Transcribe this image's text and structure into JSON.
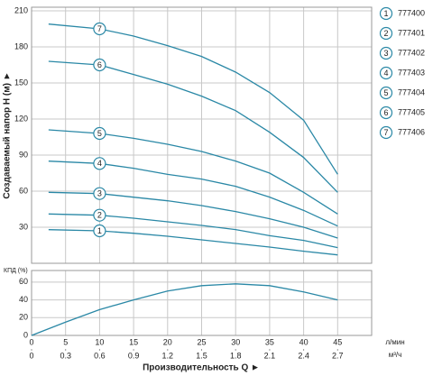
{
  "chart_data": [
    {
      "type": "line",
      "y_label": "Создаваемый напор H (м) ►",
      "ylim": [
        0,
        210
      ],
      "yticks": [
        30,
        60,
        90,
        120,
        150,
        180,
        210
      ],
      "grid": true,
      "legend": "right",
      "color": "#2a88a6",
      "x": [
        2.5,
        10,
        15,
        20,
        25,
        30,
        35,
        40,
        45
      ],
      "series": [
        {
          "name": "777400",
          "label": "1",
          "color": "#2a88a6",
          "values": [
            28,
            27,
            25,
            22.5,
            19.5,
            16.5,
            13.5,
            10,
            7
          ]
        },
        {
          "name": "777401",
          "label": "2",
          "color": "#2a88a6",
          "values": [
            41,
            40,
            37.5,
            34.5,
            31.5,
            28,
            23,
            19,
            13
          ]
        },
        {
          "name": "777402",
          "label": "3",
          "color": "#2a88a6",
          "values": [
            59,
            58,
            55,
            52,
            48,
            43,
            37,
            30,
            21
          ]
        },
        {
          "name": "777403",
          "label": "4",
          "color": "#2a88a6",
          "values": [
            85,
            83,
            79,
            74,
            70,
            64,
            55,
            44,
            31
          ]
        },
        {
          "name": "777404",
          "label": "5",
          "color": "#2a88a6",
          "values": [
            111,
            108,
            104,
            99,
            93,
            85,
            75,
            59,
            41
          ]
        },
        {
          "name": "777405",
          "label": "6",
          "color": "#2a88a6",
          "values": [
            168,
            165,
            157,
            149,
            139,
            127,
            109,
            88,
            59
          ]
        },
        {
          "name": "777406",
          "label": "7",
          "color": "#2a88a6",
          "values": [
            199,
            195,
            189,
            181,
            172,
            159,
            142,
            119,
            74
          ]
        }
      ],
      "label_at_x": 10
    },
    {
      "type": "line",
      "y_label": "КПД (%)",
      "ylim": [
        0,
        70
      ],
      "yticks": [
        0,
        20,
        40,
        60
      ],
      "xlim": [
        0,
        50
      ],
      "xticks": [
        0,
        5,
        10,
        15,
        20,
        25,
        30,
        35,
        40,
        45
      ],
      "x_unit": "л/мин",
      "x2lim": [
        0,
        3
      ],
      "x2ticks": [
        0,
        0.3,
        0.6,
        0.9,
        1.2,
        1.5,
        1.8,
        2.1,
        2.4,
        2.7
      ],
      "x2_unit": "м³/ч",
      "x_label": "Производительность Q ►",
      "grid": true,
      "x": [
        0,
        5,
        10,
        15,
        20,
        25,
        30,
        35,
        40,
        45
      ],
      "series": [
        {
          "color": "#2a88a6",
          "values": [
            0,
            15,
            29,
            40,
            50,
            56,
            58,
            56,
            49,
            40
          ]
        }
      ]
    }
  ]
}
